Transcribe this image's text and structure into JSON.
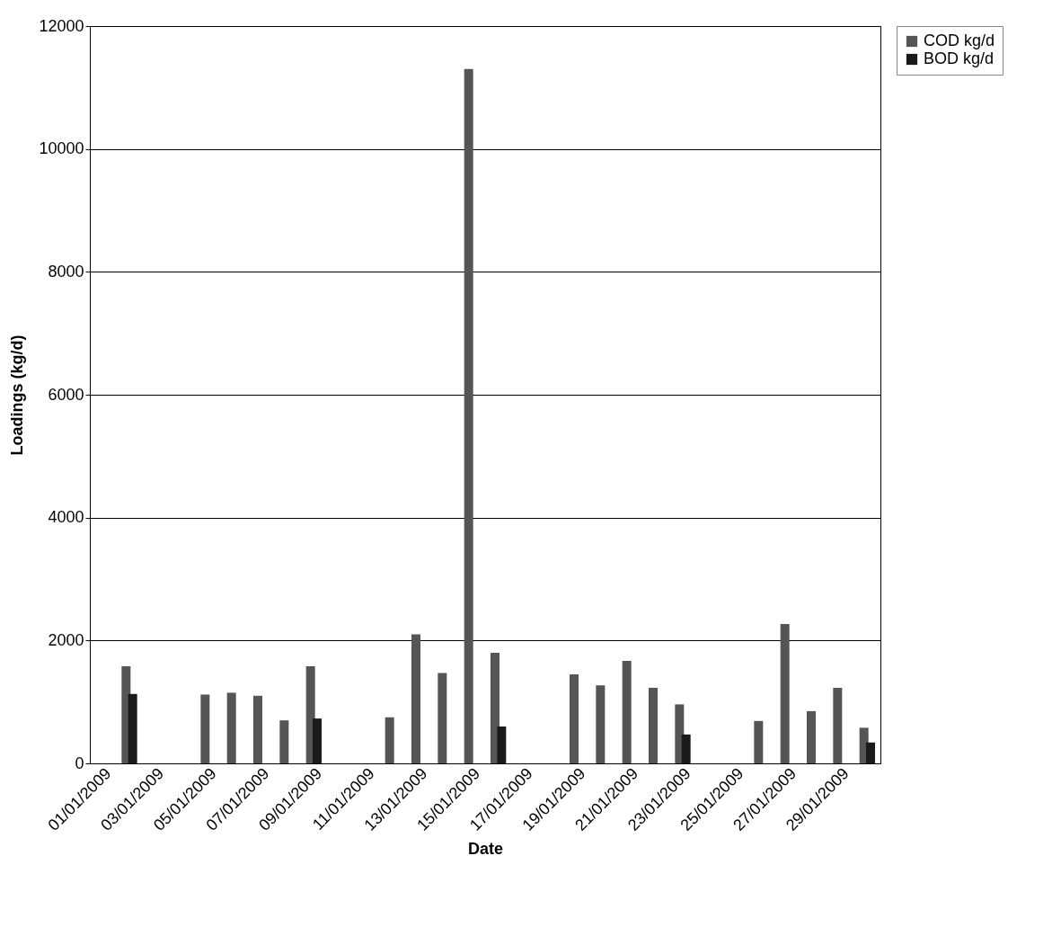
{
  "chart_data": {
    "type": "bar",
    "xlabel": "Date",
    "ylabel": "Loadings (kg/d)",
    "categories": [
      "01/01/2009",
      null,
      "03/01/2009",
      null,
      "05/01/2009",
      null,
      "07/01/2009",
      null,
      "09/01/2009",
      null,
      "11/01/2009",
      null,
      "13/01/2009",
      null,
      "15/01/2009",
      null,
      "17/01/2009",
      null,
      "19/01/2009",
      null,
      "21/01/2009",
      null,
      "23/01/2009",
      null,
      "25/01/2009",
      null,
      "27/01/2009",
      null,
      "29/01/2009",
      null
    ],
    "series": [
      {
        "name": "COD kg/d",
        "color": "#555555",
        "values": [
          null,
          1580,
          null,
          null,
          1120,
          1150,
          1100,
          700,
          1580,
          null,
          null,
          750,
          2100,
          1470,
          11300,
          1800,
          null,
          null,
          1450,
          1270,
          1670,
          1230,
          960,
          null,
          null,
          690,
          2270,
          850,
          1230,
          580
        ]
      },
      {
        "name": "BOD kg/d",
        "color": "#1a1a1a",
        "values": [
          null,
          1130,
          null,
          null,
          null,
          null,
          null,
          null,
          730,
          null,
          null,
          null,
          null,
          null,
          null,
          600,
          null,
          null,
          null,
          null,
          null,
          null,
          470,
          null,
          null,
          null,
          null,
          null,
          null,
          340
        ]
      }
    ],
    "ylim": [
      0,
      12000
    ],
    "yticks": [
      0,
      2000,
      4000,
      6000,
      8000,
      10000,
      12000
    ],
    "grid": "y",
    "legend": "right"
  }
}
